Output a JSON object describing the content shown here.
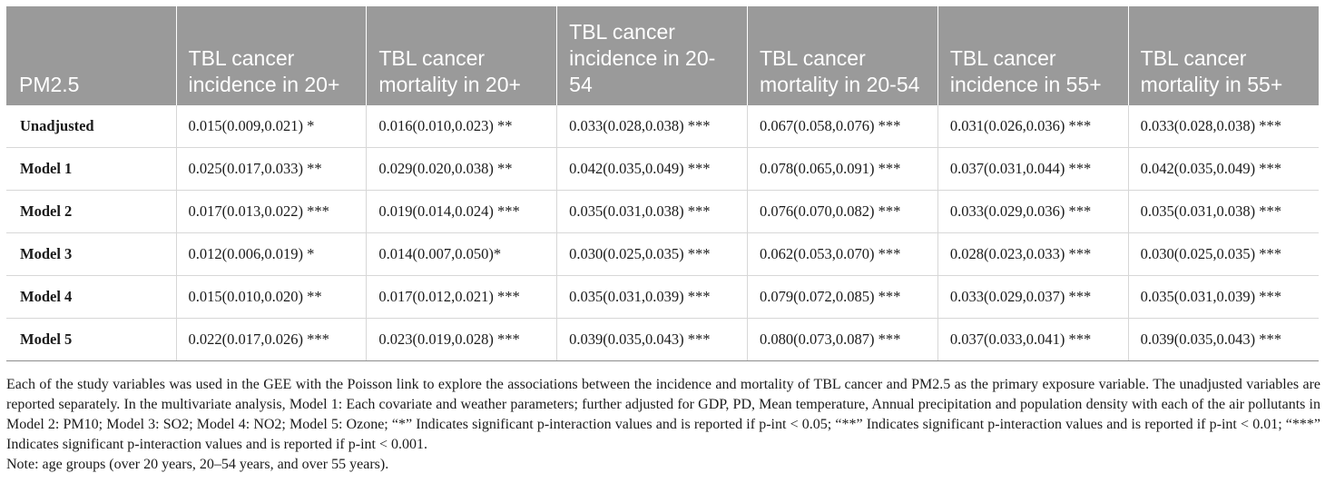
{
  "table": {
    "headers": [
      "PM2.5",
      "TBL cancer incidence in 20+",
      "TBL cancer mortality in 20+",
      "TBL cancer incidence in 20-54",
      "TBL cancer mortality in 20-54",
      "TBL cancer incidence in 55+",
      "TBL cancer mortality in 55+"
    ],
    "rows": [
      {
        "label": "Unadjusted",
        "cells": [
          "0.015(0.009,0.021) *",
          "0.016(0.010,0.023) **",
          "0.033(0.028,0.038) ***",
          "0.067(0.058,0.076) ***",
          "0.031(0.026,0.036) ***",
          "0.033(0.028,0.038) ***"
        ]
      },
      {
        "label": "Model 1",
        "cells": [
          "0.025(0.017,0.033) **",
          "0.029(0.020,0.038) **",
          "0.042(0.035,0.049) ***",
          "0.078(0.065,0.091) ***",
          "0.037(0.031,0.044) ***",
          "0.042(0.035,0.049) ***"
        ]
      },
      {
        "label": "Model 2",
        "cells": [
          "0.017(0.013,0.022) ***",
          "0.019(0.014,0.024) ***",
          "0.035(0.031,0.038) ***",
          "0.076(0.070,0.082) ***",
          "0.033(0.029,0.036) ***",
          "0.035(0.031,0.038) ***"
        ]
      },
      {
        "label": "Model 3",
        "cells": [
          "0.012(0.006,0.019) *",
          "0.014(0.007,0.050)*",
          "0.030(0.025,0.035) ***",
          "0.062(0.053,0.070) ***",
          "0.028(0.023,0.033) ***",
          "0.030(0.025,0.035) ***"
        ]
      },
      {
        "label": "Model 4",
        "cells": [
          "0.015(0.010,0.020) **",
          "0.017(0.012,0.021) ***",
          "0.035(0.031,0.039) ***",
          "0.079(0.072,0.085) ***",
          "0.033(0.029,0.037) ***",
          "0.035(0.031,0.039) ***"
        ]
      },
      {
        "label": "Model 5",
        "cells": [
          "0.022(0.017,0.026) ***",
          "0.023(0.019,0.028) ***",
          "0.039(0.035,0.043) ***",
          "0.080(0.073,0.087) ***",
          "0.037(0.033,0.041) ***",
          "0.039(0.035,0.043) ***"
        ]
      }
    ]
  },
  "footnote": {
    "text": "Each of the study variables was used in the GEE with the Poisson link to explore the associations between the incidence and mortality of TBL cancer and PM2.5 as the primary exposure variable. The unadjusted variables are reported separately. In the multivariate analysis, Model 1: Each covariate and weather parameters; further adjusted for GDP, PD, Mean temperature, Annual precipitation and population density with each of the air pollutants in Model 2: PM10; Model 3: SO2; Model 4: NO2; Model 5: Ozone; “*” Indicates significant p-interaction values and is reported if p-int < 0.05; “**” Indicates significant p-interaction values and is reported if p-int < 0.01; “***” Indicates significant p-interaction values and is reported if p-int < 0.001.",
    "note": "Note: age groups (over 20 years, 20–54 years, and over 55 years)."
  }
}
